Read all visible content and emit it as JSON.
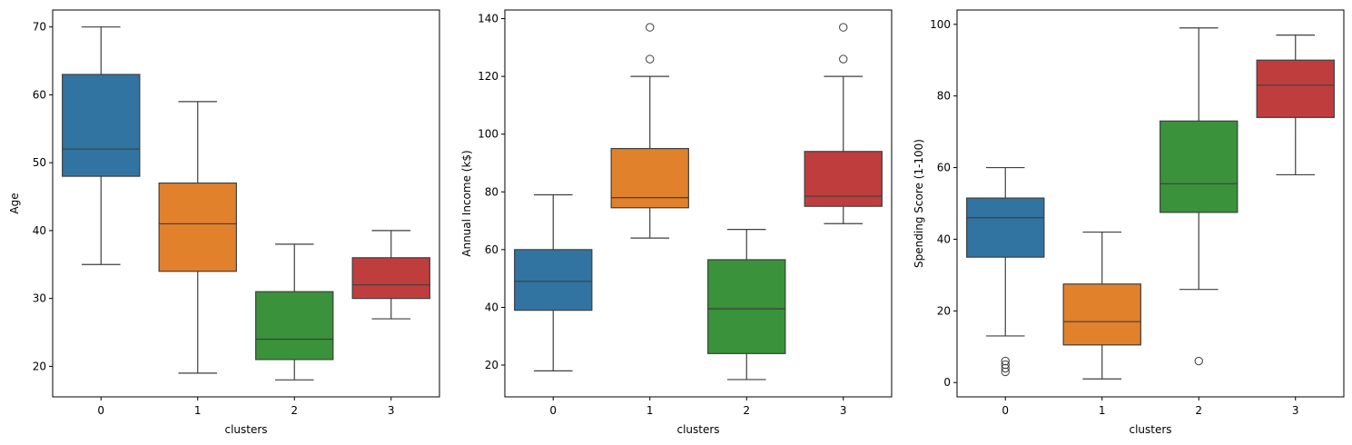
{
  "chart_data": [
    {
      "type": "box",
      "xlabel": "clusters",
      "ylabel": "Age",
      "categories": [
        "0",
        "1",
        "2",
        "3"
      ],
      "ylim": [
        15.5,
        72.5
      ],
      "yticks": [
        20,
        30,
        40,
        50,
        60,
        70
      ],
      "grid": false,
      "legend": "none",
      "boxes": [
        {
          "cluster": "0",
          "whisker_low": 35,
          "q1": 48,
          "median": 52,
          "q3": 63,
          "whisker_high": 70,
          "outliers": [],
          "color": "#3274a1"
        },
        {
          "cluster": "1",
          "whisker_low": 19,
          "q1": 34,
          "median": 41,
          "q3": 47,
          "whisker_high": 59,
          "outliers": [],
          "color": "#e1812c"
        },
        {
          "cluster": "2",
          "whisker_low": 18,
          "q1": 21,
          "median": 24,
          "q3": 31,
          "whisker_high": 38,
          "outliers": [],
          "color": "#3a923a"
        },
        {
          "cluster": "3",
          "whisker_low": 27,
          "q1": 30,
          "median": 32,
          "q3": 36,
          "whisker_high": 40,
          "outliers": [],
          "color": "#c03d3e"
        }
      ]
    },
    {
      "type": "box",
      "xlabel": "clusters",
      "ylabel": "Annual Income (k$)",
      "categories": [
        "0",
        "1",
        "2",
        "3"
      ],
      "ylim": [
        9,
        143
      ],
      "yticks": [
        20,
        40,
        60,
        80,
        100,
        120,
        140
      ],
      "grid": false,
      "legend": "none",
      "boxes": [
        {
          "cluster": "0",
          "whisker_low": 18,
          "q1": 39,
          "median": 49,
          "q3": 60,
          "whisker_high": 79,
          "outliers": [],
          "color": "#3274a1"
        },
        {
          "cluster": "1",
          "whisker_low": 64,
          "q1": 74.5,
          "median": 78,
          "q3": 95,
          "whisker_high": 120,
          "outliers": [
            126,
            137
          ],
          "color": "#e1812c"
        },
        {
          "cluster": "2",
          "whisker_low": 15,
          "q1": 24,
          "median": 39.5,
          "q3": 56.5,
          "whisker_high": 67,
          "outliers": [],
          "color": "#3a923a"
        },
        {
          "cluster": "3",
          "whisker_low": 69,
          "q1": 75,
          "median": 78.5,
          "q3": 94,
          "whisker_high": 120,
          "outliers": [
            126,
            137
          ],
          "color": "#c03d3e"
        }
      ]
    },
    {
      "type": "box",
      "xlabel": "clusters",
      "ylabel": "Spending Score (1-100)",
      "categories": [
        "0",
        "1",
        "2",
        "3"
      ],
      "ylim": [
        -4,
        104
      ],
      "yticks": [
        0,
        20,
        40,
        60,
        80,
        100
      ],
      "grid": false,
      "legend": "none",
      "boxes": [
        {
          "cluster": "0",
          "whisker_low": 13,
          "q1": 35,
          "median": 46,
          "q3": 51.5,
          "whisker_high": 60,
          "outliers": [
            3,
            4,
            5,
            6
          ],
          "color": "#3274a1"
        },
        {
          "cluster": "1",
          "whisker_low": 1,
          "q1": 10.5,
          "median": 17,
          "q3": 27.5,
          "whisker_high": 42,
          "outliers": [],
          "color": "#e1812c"
        },
        {
          "cluster": "2",
          "whisker_low": 26,
          "q1": 47.5,
          "median": 55.5,
          "q3": 73,
          "whisker_high": 99,
          "outliers": [
            6
          ],
          "color": "#3a923a"
        },
        {
          "cluster": "3",
          "whisker_low": 58,
          "q1": 74,
          "median": 83,
          "q3": 90,
          "whisker_high": 97,
          "outliers": [],
          "color": "#c03d3e"
        }
      ]
    }
  ],
  "style": {
    "line_color": "#3f3f3f",
    "axis_color": "#000000",
    "background": "#ffffff"
  }
}
